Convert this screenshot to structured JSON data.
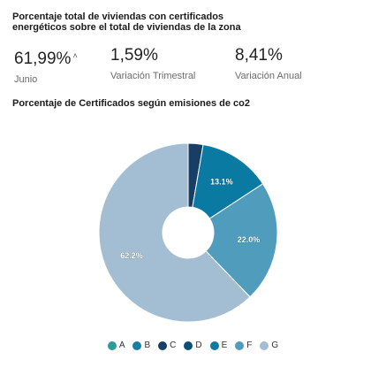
{
  "header": {
    "title": "Porcentaje total de viviendas con certificados energéticos sobre el total de viviendas de la zona"
  },
  "kpis": [
    {
      "value": "61,99%",
      "label": "Junio",
      "trend_icon": "caret-up-icon",
      "trend_glyph": "˄"
    },
    {
      "value": "1,59%",
      "label": "Variación Trimestral"
    },
    {
      "value": "8,41%",
      "label": "Variación Anual"
    }
  ],
  "chart_title": "Porcentaje de Certificados según emisiones de co2",
  "chart_data": {
    "type": "pie",
    "donut": true,
    "categories": [
      "A",
      "B",
      "C",
      "D",
      "E",
      "F",
      "G"
    ],
    "values": [
      0,
      0,
      2.7,
      0,
      13.1,
      22.0,
      62.2
    ],
    "slice_labels": [
      "",
      "",
      "",
      "",
      "13.1%",
      "22.0%",
      "62.2%"
    ],
    "colors": [
      "#2e9b9a",
      "#167fa3",
      "#173f66",
      "#06507a",
      "#0a7aa3",
      "#4f9cbc",
      "#a3bed2"
    ],
    "legend_position": "bottom"
  }
}
